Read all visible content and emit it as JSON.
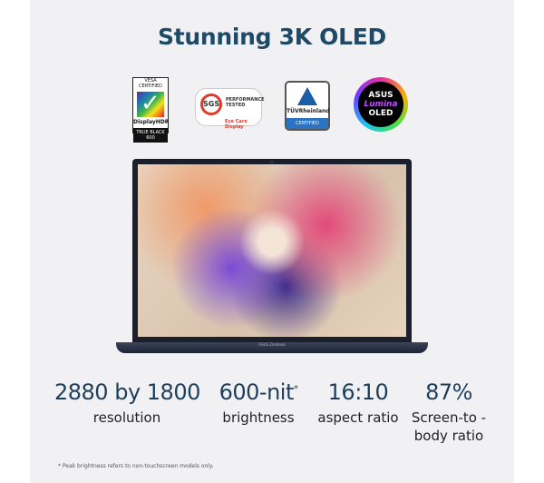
{
  "title": "Stunning 3K OLED",
  "logos": {
    "vesa": {
      "top": "VESA CERTIFIED",
      "name": "DisplayHDR",
      "tier": "TRUE BLACK 600"
    },
    "sgs": {
      "mark": "SGS",
      "line1": "PERFORMANCE",
      "line2": "TESTED",
      "sub": "Eye Care Display"
    },
    "tuv": {
      "name": "TÜVRheinland",
      "badge": "CERTIFIED"
    },
    "oled": {
      "line1": "ASUS",
      "line2": "Lumina",
      "line3": "OLED"
    }
  },
  "laptop": {
    "brand": "ASUS Zenbook"
  },
  "specs": [
    {
      "value": "2880 by 1800",
      "label": "resolution"
    },
    {
      "value": "600-nit",
      "mark": "*",
      "label": "brightness"
    },
    {
      "value": "16:10",
      "label": "aspect ratio"
    },
    {
      "value": "87%",
      "label": "Screen-to -body ratio"
    }
  ],
  "footnote": "* Peak brightness refers to non-touchscreen models only."
}
